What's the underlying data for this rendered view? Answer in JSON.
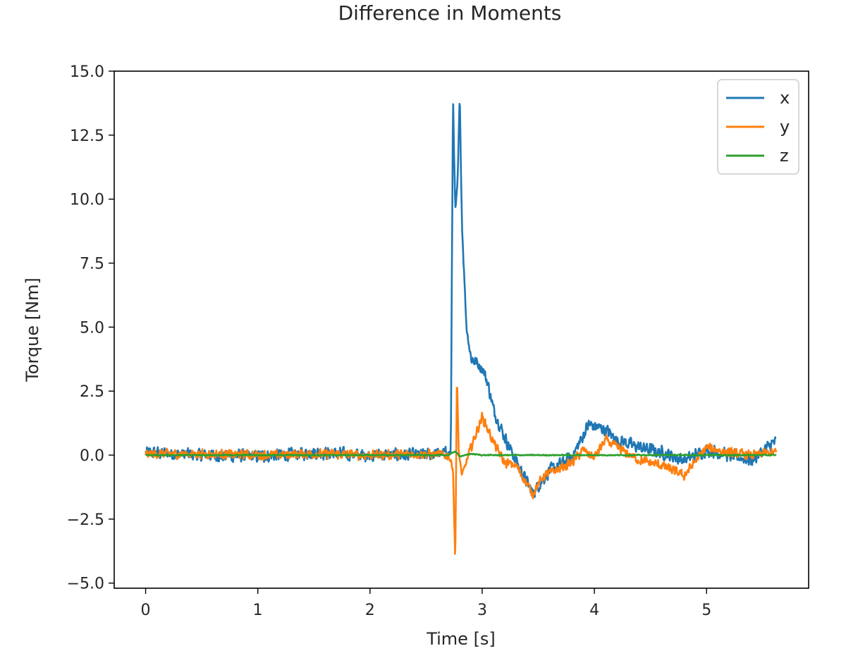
{
  "chart_data": {
    "type": "line",
    "title": "Difference in Moments",
    "xlabel": "Time [s]",
    "ylabel": "Torque [Nm]",
    "xlim": [
      -0.28,
      5.91
    ],
    "ylim": [
      -5.2,
      15.0
    ],
    "xticks": [
      0,
      1,
      2,
      3,
      4,
      5
    ],
    "xtick_labels": [
      "0",
      "1",
      "2",
      "3",
      "4",
      "5"
    ],
    "yticks": [
      -5.0,
      -2.5,
      0.0,
      2.5,
      5.0,
      7.5,
      10.0,
      12.5,
      15.0
    ],
    "ytick_labels": [
      "−5.0",
      "−2.5",
      "0.0",
      "2.5",
      "5.0",
      "7.5",
      "10.0",
      "12.5",
      "15.0"
    ],
    "grid": false,
    "legend_position": "top-right",
    "series": [
      {
        "name": "x",
        "color": "#1f77b4",
        "noise": 0.3,
        "keypoints": [
          [
            0,
            0.1
          ],
          [
            0.5,
            0.0
          ],
          [
            1.0,
            -0.05
          ],
          [
            1.5,
            0.1
          ],
          [
            2.0,
            0.0
          ],
          [
            2.5,
            0.0
          ],
          [
            2.72,
            0.1
          ],
          [
            2.74,
            14.1
          ],
          [
            2.76,
            9.5
          ],
          [
            2.78,
            10.5
          ],
          [
            2.8,
            14.0
          ],
          [
            2.82,
            9.0
          ],
          [
            2.86,
            5.0
          ],
          [
            2.9,
            3.8
          ],
          [
            3.0,
            3.4
          ],
          [
            3.05,
            2.8
          ],
          [
            3.1,
            1.8
          ],
          [
            3.2,
            0.7
          ],
          [
            3.3,
            -0.2
          ],
          [
            3.45,
            -1.5
          ],
          [
            3.6,
            -0.6
          ],
          [
            3.8,
            -0.1
          ],
          [
            3.95,
            1.2
          ],
          [
            4.1,
            1.0
          ],
          [
            4.2,
            0.6
          ],
          [
            4.4,
            0.3
          ],
          [
            4.6,
            0.1
          ],
          [
            4.8,
            -0.2
          ],
          [
            5.0,
            0.2
          ],
          [
            5.2,
            0.0
          ],
          [
            5.4,
            -0.2
          ],
          [
            5.6,
            0.5
          ]
        ]
      },
      {
        "name": "y",
        "color": "#ff7f0e",
        "noise": 0.22,
        "keypoints": [
          [
            0,
            0.05
          ],
          [
            0.5,
            0.05
          ],
          [
            1.0,
            0.0
          ],
          [
            1.5,
            0.05
          ],
          [
            2.0,
            0.0
          ],
          [
            2.5,
            0.05
          ],
          [
            2.7,
            0.0
          ],
          [
            2.74,
            -0.5
          ],
          [
            2.76,
            -4.3
          ],
          [
            2.775,
            3.2
          ],
          [
            2.79,
            0.2
          ],
          [
            2.82,
            -0.8
          ],
          [
            2.9,
            0.3
          ],
          [
            3.0,
            1.5
          ],
          [
            3.1,
            0.5
          ],
          [
            3.2,
            -0.3
          ],
          [
            3.3,
            -0.4
          ],
          [
            3.45,
            -1.5
          ],
          [
            3.55,
            -0.8
          ],
          [
            3.7,
            -0.5
          ],
          [
            3.8,
            -0.3
          ],
          [
            3.9,
            0.2
          ],
          [
            4.0,
            -0.1
          ],
          [
            4.1,
            0.6
          ],
          [
            4.2,
            0.3
          ],
          [
            4.4,
            -0.2
          ],
          [
            4.6,
            -0.4
          ],
          [
            4.8,
            -0.8
          ],
          [
            5.0,
            0.3
          ],
          [
            5.2,
            0.1
          ],
          [
            5.4,
            0.0
          ],
          [
            5.6,
            0.1
          ]
        ]
      },
      {
        "name": "z",
        "color": "#2ca02c",
        "noise": 0.025,
        "keypoints": [
          [
            0,
            0.0
          ],
          [
            2.7,
            0.0
          ],
          [
            2.76,
            0.15
          ],
          [
            2.8,
            -0.05
          ],
          [
            2.9,
            0.05
          ],
          [
            3.0,
            0.0
          ],
          [
            5.62,
            0.0
          ]
        ]
      }
    ]
  }
}
